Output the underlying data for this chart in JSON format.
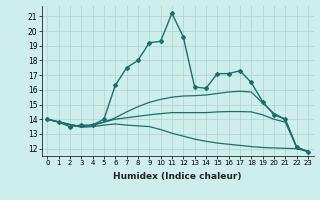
{
  "title": "",
  "xlabel": "Humidex (Indice chaleur)",
  "x_ticks": [
    0,
    1,
    2,
    3,
    4,
    5,
    6,
    7,
    8,
    9,
    10,
    11,
    12,
    13,
    14,
    15,
    16,
    17,
    18,
    19,
    20,
    21,
    22,
    23
  ],
  "x_tick_labels": [
    "0",
    "1",
    "2",
    "3",
    "4",
    "5",
    "6",
    "7",
    "8",
    "9",
    "10",
    "11",
    "12",
    "13",
    "14",
    "15",
    "16",
    "17",
    "18",
    "19",
    "20",
    "21",
    "22",
    "23"
  ],
  "ylim": [
    11.5,
    21.7
  ],
  "xlim": [
    -0.5,
    23.5
  ],
  "y_ticks": [
    12,
    13,
    14,
    15,
    16,
    17,
    18,
    19,
    20,
    21
  ],
  "background_color": "#cdeeed",
  "grid_color": "#b0d0cc",
  "line_color": "#1a7068",
  "lines": [
    {
      "x": [
        0,
        1,
        2,
        3,
        4,
        5,
        6,
        7,
        8,
        9,
        10,
        11,
        12,
        13,
        14,
        15,
        16,
        17,
        18,
        19,
        20,
        21,
        22,
        23
      ],
      "y": [
        14.0,
        13.8,
        13.5,
        13.6,
        13.6,
        14.0,
        16.3,
        17.5,
        18.0,
        19.2,
        19.3,
        21.2,
        19.6,
        16.2,
        16.1,
        17.1,
        17.1,
        17.3,
        16.5,
        15.2,
        14.3,
        14.0,
        12.1,
        11.8
      ],
      "marker": "D",
      "markersize": 2.0,
      "linewidth": 1.0
    },
    {
      "x": [
        0,
        23
      ],
      "y": [
        14.0,
        11.8
      ],
      "marker": null,
      "markersize": 0,
      "linewidth": 0.9
    },
    {
      "x": [
        0,
        23
      ],
      "y": [
        14.0,
        11.8
      ],
      "marker": null,
      "markersize": 0,
      "linewidth": 0.9
    },
    {
      "x": [
        0,
        23
      ],
      "y": [
        14.0,
        11.8
      ],
      "marker": null,
      "markersize": 0,
      "linewidth": 0.9
    }
  ],
  "fan_lines": [
    {
      "x": [
        0,
        1,
        2,
        3,
        4,
        5,
        6,
        7,
        8,
        9,
        10,
        11,
        12,
        13,
        14,
        15,
        16,
        17,
        18,
        19,
        20,
        21,
        22,
        23
      ],
      "y": [
        14.0,
        13.82,
        13.64,
        13.45,
        13.5,
        13.6,
        13.68,
        13.6,
        13.55,
        13.5,
        13.3,
        13.05,
        12.85,
        12.65,
        12.5,
        12.38,
        12.3,
        12.22,
        12.14,
        12.08,
        12.05,
        12.02,
        12.0,
        11.8
      ]
    },
    {
      "x": [
        0,
        1,
        2,
        3,
        4,
        5,
        6,
        7,
        8,
        9,
        10,
        11,
        12,
        13,
        14,
        15,
        16,
        17,
        18,
        19,
        20,
        21,
        22,
        23
      ],
      "y": [
        14.0,
        13.82,
        13.64,
        13.5,
        13.6,
        13.8,
        14.0,
        14.1,
        14.2,
        14.3,
        14.38,
        14.45,
        14.45,
        14.45,
        14.45,
        14.5,
        14.52,
        14.52,
        14.5,
        14.3,
        14.0,
        13.8,
        12.1,
        11.8
      ]
    },
    {
      "x": [
        0,
        1,
        2,
        3,
        4,
        5,
        6,
        7,
        8,
        9,
        10,
        11,
        12,
        13,
        14,
        15,
        16,
        17,
        18,
        19,
        20,
        21,
        22,
        23
      ],
      "y": [
        14.0,
        13.82,
        13.64,
        13.5,
        13.6,
        13.8,
        14.1,
        14.5,
        14.85,
        15.15,
        15.35,
        15.5,
        15.58,
        15.6,
        15.65,
        15.75,
        15.85,
        15.9,
        15.85,
        15.1,
        14.4,
        14.0,
        12.1,
        11.8
      ]
    }
  ]
}
